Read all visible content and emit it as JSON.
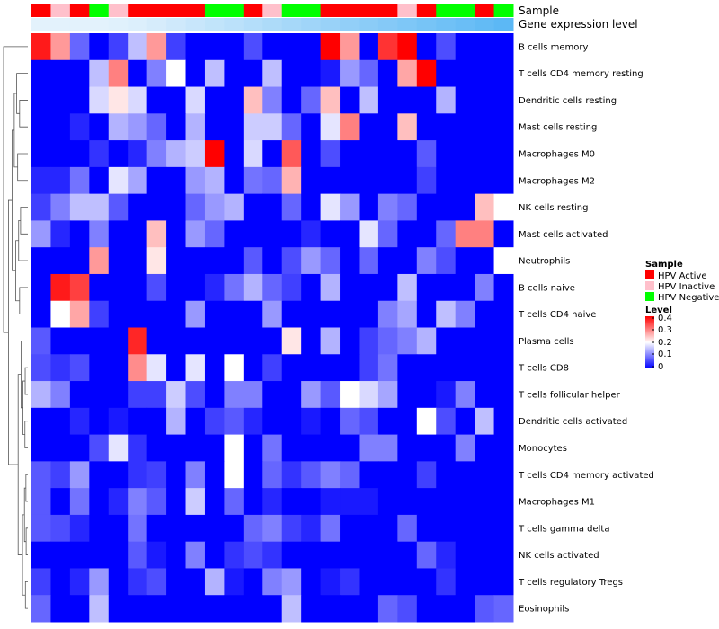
{
  "chart_data": {
    "type": "heatmap",
    "annotation_rows": [
      "Sample",
      "Gene expression level"
    ],
    "sample_groups": [
      "A",
      "I",
      "A",
      "N",
      "I",
      "A",
      "A",
      "A",
      "A",
      "N",
      "N",
      "A",
      "I",
      "N",
      "N",
      "A",
      "A",
      "A",
      "A",
      "I",
      "A",
      "N",
      "N",
      "A",
      "N"
    ],
    "expression_level": [
      0,
      0,
      0,
      0,
      0.02,
      0.05,
      0.1,
      0.15,
      0.2,
      0.25,
      0.3,
      0.35,
      0.4,
      0.45,
      0.5,
      0.55,
      0.6,
      0.65,
      0.7,
      0.75,
      0.8,
      0.85,
      0.9,
      0.95,
      1
    ],
    "rows": [
      "B cells memory",
      "T cells CD4 memory resting",
      "Dendritic cells resting",
      "Mast cells resting",
      "Macrophages M0",
      "Macrophages M2",
      "NK cells resting",
      "Mast cells activated",
      "Neutrophils",
      "B cells naive",
      "T cells CD4 naive",
      "Plasma cells",
      "T cells CD8",
      "T cells follicular helper",
      "Dendritic cells activated",
      "Monocytes",
      "T cells CD4 memory activated",
      "Macrophages M1",
      "T cells gamma delta",
      "NK cells activated",
      "T cells regulatory  Tregs",
      "Eosinophils"
    ],
    "values": [
      [
        0.38,
        0.28,
        0.08,
        0.0,
        0.05,
        0.15,
        0.28,
        0.05,
        0.0,
        0.0,
        0.0,
        0.06,
        0.0,
        0.0,
        0.0,
        0.4,
        0.28,
        0.0,
        0.36,
        0.4,
        0.0,
        0.06,
        0.0,
        0.0,
        0.0
      ],
      [
        0.0,
        0.0,
        0.0,
        0.15,
        0.3,
        0.0,
        0.1,
        0.2,
        0.0,
        0.15,
        0.0,
        0.0,
        0.15,
        0.0,
        0.0,
        0.02,
        0.12,
        0.08,
        0.0,
        0.27,
        0.4,
        0.0,
        0.0,
        0.0,
        0.0
      ],
      [
        0.0,
        0.0,
        0.0,
        0.17,
        0.22,
        0.17,
        0.0,
        0.0,
        0.17,
        0.0,
        0.0,
        0.25,
        0.1,
        0.0,
        0.08,
        0.25,
        0.0,
        0.15,
        0.0,
        0.0,
        0.0,
        0.14,
        0.0,
        0.0,
        0.0
      ],
      [
        0.0,
        0.0,
        0.03,
        0.0,
        0.14,
        0.12,
        0.08,
        0.0,
        0.14,
        0.0,
        0.0,
        0.16,
        0.16,
        0.08,
        0.0,
        0.18,
        0.3,
        0.0,
        0.0,
        0.25,
        0.0,
        0.0,
        0.0,
        0.0,
        0.0
      ],
      [
        0.0,
        0.0,
        0.0,
        0.04,
        0.0,
        0.03,
        0.1,
        0.14,
        0.16,
        0.4,
        0.0,
        0.17,
        0.0,
        0.33,
        0.0,
        0.06,
        0.0,
        0.0,
        0.0,
        0.0,
        0.07,
        0.0,
        0.0,
        0.0,
        0.0
      ],
      [
        0.03,
        0.03,
        0.09,
        0.0,
        0.18,
        0.13,
        0.0,
        0.0,
        0.12,
        0.14,
        0.0,
        0.09,
        0.08,
        0.26,
        0.0,
        0.0,
        0.0,
        0.0,
        0.0,
        0.0,
        0.05,
        0.0,
        0.0,
        0.0,
        0.0
      ],
      [
        0.05,
        0.1,
        0.15,
        0.15,
        0.07,
        0.0,
        0.0,
        0.0,
        0.08,
        0.12,
        0.14,
        0.0,
        0.0,
        0.08,
        0.0,
        0.18,
        0.12,
        0.0,
        0.1,
        0.08,
        0.0,
        0.0,
        0.0,
        0.25,
        0.2
      ],
      [
        0.12,
        0.03,
        0.0,
        0.1,
        0.0,
        0.0,
        0.25,
        0.0,
        0.12,
        0.08,
        0.0,
        0.0,
        0.0,
        0.0,
        0.03,
        0.0,
        0.0,
        0.18,
        0.08,
        0.0,
        0.0,
        0.08,
        0.3,
        0.3,
        0.0
      ],
      [
        0.0,
        0.0,
        0.0,
        0.28,
        0.0,
        0.0,
        0.22,
        0.0,
        0.0,
        0.0,
        0.0,
        0.07,
        0.0,
        0.06,
        0.12,
        0.08,
        0.0,
        0.08,
        0.0,
        0.0,
        0.1,
        0.06,
        0.0,
        0.0,
        0.2
      ],
      [
        0.0,
        0.38,
        0.35,
        0.0,
        0.0,
        0.0,
        0.06,
        0.0,
        0.0,
        0.03,
        0.09,
        0.14,
        0.08,
        0.05,
        0.0,
        0.14,
        0.0,
        0.0,
        0.0,
        0.15,
        0.0,
        0.0,
        0.0,
        0.1,
        0.0
      ],
      [
        0.0,
        0.2,
        0.27,
        0.05,
        0.0,
        0.0,
        0.0,
        0.0,
        0.12,
        0.0,
        0.0,
        0.0,
        0.12,
        0.0,
        0.0,
        0.0,
        0.0,
        0.0,
        0.1,
        0.13,
        0.0,
        0.15,
        0.1,
        0.0,
        0.0
      ],
      [
        0.07,
        0.0,
        0.0,
        0.0,
        0.0,
        0.37,
        0.0,
        0.0,
        0.0,
        0.0,
        0.0,
        0.0,
        0.0,
        0.22,
        0.0,
        0.14,
        0.0,
        0.05,
        0.08,
        0.1,
        0.14,
        0.0,
        0.0,
        0.0,
        0.0
      ],
      [
        0.06,
        0.04,
        0.06,
        0.0,
        0.0,
        0.29,
        0.18,
        0.0,
        0.18,
        0.0,
        0.2,
        0.0,
        0.05,
        0.0,
        0.0,
        0.0,
        0.0,
        0.05,
        0.09,
        0.0,
        0.0,
        0.0,
        0.0,
        0.0,
        0.0
      ],
      [
        0.14,
        0.1,
        0.0,
        0.0,
        0.0,
        0.05,
        0.05,
        0.16,
        0.06,
        0.0,
        0.1,
        0.1,
        0.0,
        0.0,
        0.12,
        0.07,
        0.2,
        0.17,
        0.13,
        0.0,
        0.0,
        0.02,
        0.1,
        0.0,
        0.0
      ],
      [
        0.0,
        0.0,
        0.03,
        0.0,
        0.02,
        0.0,
        0.0,
        0.14,
        0.0,
        0.05,
        0.07,
        0.03,
        0.0,
        0.0,
        0.02,
        0.0,
        0.08,
        0.06,
        0.0,
        0.0,
        0.2,
        0.06,
        0.0,
        0.15,
        0.0
      ],
      [
        0.0,
        0.0,
        0.0,
        0.06,
        0.18,
        0.04,
        0.0,
        0.0,
        0.0,
        0.0,
        0.2,
        0.0,
        0.09,
        0.0,
        0.0,
        0.0,
        0.0,
        0.1,
        0.1,
        0.0,
        0.0,
        0.0,
        0.1,
        0.0,
        0.0
      ],
      [
        0.07,
        0.05,
        0.12,
        0.0,
        0.0,
        0.04,
        0.05,
        0.0,
        0.1,
        0.0,
        0.2,
        0.0,
        0.08,
        0.04,
        0.07,
        0.1,
        0.08,
        0.0,
        0.0,
        0.0,
        0.05,
        0.0,
        0.0,
        0.0,
        0.0
      ],
      [
        0.07,
        0.0,
        0.09,
        0.0,
        0.03,
        0.1,
        0.07,
        0.0,
        0.16,
        0.0,
        0.08,
        0.0,
        0.03,
        0.0,
        0.0,
        0.02,
        0.02,
        0.02,
        0.0,
        0.0,
        0.0,
        0.0,
        0.0,
        0.0,
        0.0
      ],
      [
        0.07,
        0.06,
        0.03,
        0.0,
        0.0,
        0.09,
        0.0,
        0.0,
        0.0,
        0.0,
        0.0,
        0.08,
        0.1,
        0.05,
        0.03,
        0.09,
        0.0,
        0.0,
        0.0,
        0.08,
        0.0,
        0.0,
        0.0,
        0.0,
        0.0
      ],
      [
        0.0,
        0.0,
        0.0,
        0.0,
        0.0,
        0.07,
        0.02,
        0.0,
        0.1,
        0.0,
        0.04,
        0.06,
        0.04,
        0.0,
        0.0,
        0.0,
        0.0,
        0.0,
        0.0,
        0.0,
        0.08,
        0.03,
        0.0,
        0.0,
        0.0
      ],
      [
        0.05,
        0.0,
        0.03,
        0.12,
        0.0,
        0.04,
        0.06,
        0.0,
        0.0,
        0.14,
        0.02,
        0.0,
        0.1,
        0.12,
        0.0,
        0.02,
        0.04,
        0.0,
        0.0,
        0.0,
        0.0,
        0.04,
        0.0,
        0.0,
        0.0
      ],
      [
        0.08,
        0.0,
        0.0,
        0.15,
        0.0,
        0.0,
        0.0,
        0.0,
        0.0,
        0.0,
        0.0,
        0.0,
        0.0,
        0.15,
        0.0,
        0.0,
        0.0,
        0.0,
        0.08,
        0.06,
        0.0,
        0.0,
        0.0,
        0.07,
        0.08
      ]
    ],
    "legend_sample": {
      "title": "Sample",
      "items": [
        {
          "label": "HPV Active",
          "color": "#ff0000"
        },
        {
          "label": "HPV Inactive",
          "color": "#ffc0cb"
        },
        {
          "label": "HPV Negative",
          "color": "#00ff00"
        }
      ]
    },
    "legend_level": {
      "title": "Level",
      "ticks": [
        "0.4",
        "0.3",
        "0.2",
        "0.1",
        "0"
      ]
    },
    "scale": {
      "min": 0,
      "mid": 0.2,
      "max": 0.4,
      "low": "#0000ff",
      "middle": "#ffffff",
      "high": "#ff0000"
    },
    "expression_colors": {
      "low": "#e3f2fc",
      "high": "#5cb8f5"
    },
    "row_dendrogram": {
      "type": "hierarchical clustering",
      "orientation": "left",
      "merges": [
        [
          -17,
          -18,
          0.08
        ],
        [
          -19,
          -20,
          0.07
        ],
        [
          1,
          2,
          0.14
        ],
        [
          -21,
          -22,
          0.1
        ],
        [
          3,
          4,
          0.22
        ],
        [
          -15,
          -16,
          0.12
        ],
        [
          -13,
          -14,
          0.11
        ],
        [
          6,
          7,
          0.2
        ],
        [
          -12,
          8,
          0.28
        ],
        [
          9,
          5,
          0.4
        ],
        [
          -10,
          -11,
          0.34
        ],
        [
          -7,
          -8,
          0.3
        ],
        [
          12,
          -9,
          0.38
        ],
        [
          11,
          13,
          0.5
        ],
        [
          -5,
          -6,
          0.42
        ],
        [
          -3,
          -4,
          0.34
        ],
        [
          -2,
          16,
          0.46
        ],
        [
          17,
          15,
          0.56
        ],
        [
          18,
          14,
          0.65
        ],
        [
          19,
          10,
          0.8
        ],
        [
          -1,
          20,
          1.0
        ]
      ]
    }
  }
}
